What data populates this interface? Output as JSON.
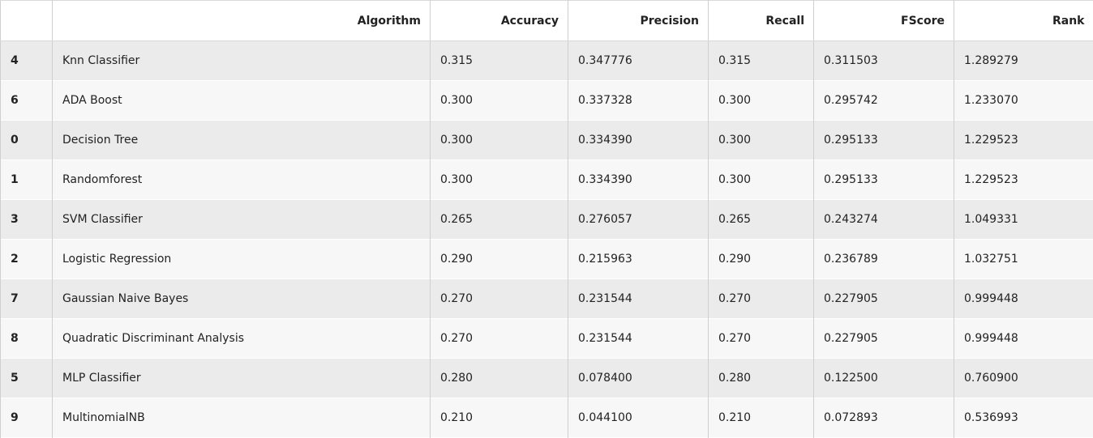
{
  "table": {
    "columns": [
      "",
      "Algorithm",
      "Accuracy",
      "Precision",
      "Recall",
      "FScore",
      "Rank"
    ],
    "rows": [
      {
        "index": "4",
        "algorithm": "Knn Classifier",
        "accuracy": "0.315",
        "precision": "0.347776",
        "recall": "0.315",
        "fscore": "0.311503",
        "rank": "1.289279"
      },
      {
        "index": "6",
        "algorithm": "ADA Boost",
        "accuracy": "0.300",
        "precision": "0.337328",
        "recall": "0.300",
        "fscore": "0.295742",
        "rank": "1.233070"
      },
      {
        "index": "0",
        "algorithm": "Decision Tree",
        "accuracy": "0.300",
        "precision": "0.334390",
        "recall": "0.300",
        "fscore": "0.295133",
        "rank": "1.229523"
      },
      {
        "index": "1",
        "algorithm": "Randomforest",
        "accuracy": "0.300",
        "precision": "0.334390",
        "recall": "0.300",
        "fscore": "0.295133",
        "rank": "1.229523"
      },
      {
        "index": "3",
        "algorithm": "SVM Classifier",
        "accuracy": "0.265",
        "precision": "0.276057",
        "recall": "0.265",
        "fscore": "0.243274",
        "rank": "1.049331"
      },
      {
        "index": "2",
        "algorithm": "Logistic Regression",
        "accuracy": "0.290",
        "precision": "0.215963",
        "recall": "0.290",
        "fscore": "0.236789",
        "rank": "1.032751"
      },
      {
        "index": "7",
        "algorithm": "Gaussian Naive Bayes",
        "accuracy": "0.270",
        "precision": "0.231544",
        "recall": "0.270",
        "fscore": "0.227905",
        "rank": "0.999448"
      },
      {
        "index": "8",
        "algorithm": "Quadratic Discriminant Analysis",
        "accuracy": "0.270",
        "precision": "0.231544",
        "recall": "0.270",
        "fscore": "0.227905",
        "rank": "0.999448"
      },
      {
        "index": "5",
        "algorithm": "MLP Classifier",
        "accuracy": "0.280",
        "precision": "0.078400",
        "recall": "0.280",
        "fscore": "0.122500",
        "rank": "0.760900"
      },
      {
        "index": "9",
        "algorithm": "MultinomialNB",
        "accuracy": "0.210",
        "precision": "0.044100",
        "recall": "0.210",
        "fscore": "0.072893",
        "rank": "0.536993"
      }
    ]
  }
}
